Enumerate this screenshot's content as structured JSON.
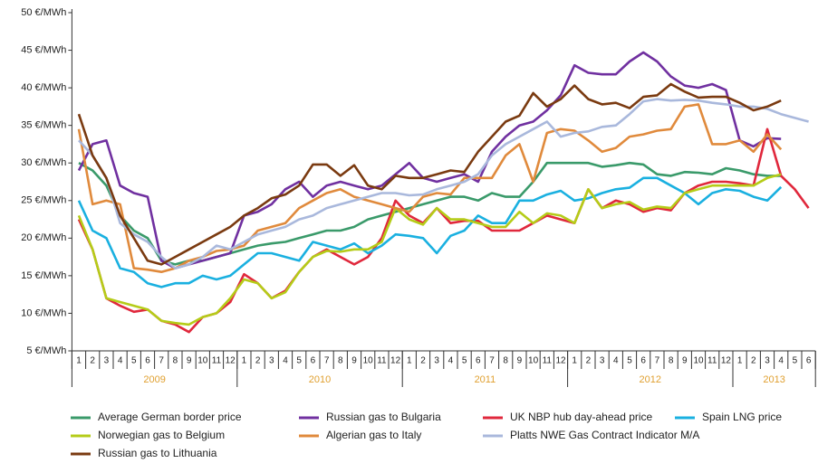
{
  "chart_data": {
    "type": "line",
    "categories": [
      "1",
      "2",
      "3",
      "4",
      "5",
      "6",
      "7",
      "8",
      "9",
      "10",
      "11",
      "12",
      "1",
      "2",
      "3",
      "4",
      "5",
      "6",
      "7",
      "8",
      "9",
      "10",
      "11",
      "12",
      "1",
      "2",
      "3",
      "4",
      "5",
      "6",
      "7",
      "8",
      "9",
      "10",
      "11",
      "12",
      "1",
      "2",
      "3",
      "4",
      "5",
      "6",
      "7",
      "8",
      "9",
      "10",
      "11",
      "12",
      "1",
      "2",
      "3",
      "4",
      "5",
      "6"
    ],
    "years": [
      "2009",
      "2010",
      "2011",
      "2012",
      "2013"
    ],
    "ylim": [
      5,
      50
    ],
    "yticks": [
      {
        "value": 5,
        "label": "5 €/MWh"
      },
      {
        "value": 10,
        "label": "10 €/MWh"
      },
      {
        "value": 15,
        "label": "15 €/MWh"
      },
      {
        "value": 20,
        "label": "20 €/MWh"
      },
      {
        "value": 25,
        "label": "25 €/MWh"
      },
      {
        "value": 30,
        "label": "30 €/MWh"
      },
      {
        "value": 35,
        "label": "35 €/MWh"
      },
      {
        "value": 40,
        "label": "40 €/MWh"
      },
      {
        "value": 45,
        "label": "45 €/MWh"
      },
      {
        "value": 50,
        "label": "50 €/MWh"
      }
    ],
    "grid": false,
    "legend": "bottom",
    "series": [
      {
        "name": "Average German border price",
        "color": "#3a9a6a",
        "values": [
          30,
          29,
          27,
          23,
          21,
          20,
          17,
          16.5,
          17,
          17,
          17.5,
          18,
          18.5,
          19,
          19.3,
          19.5,
          20,
          20.5,
          21,
          21,
          21.5,
          22.5,
          23,
          23.5,
          24,
          24.5,
          25,
          25.5,
          25.5,
          25,
          26,
          25.5,
          25.5,
          27.5,
          30,
          30,
          30,
          30,
          29.5,
          29.7,
          30,
          29.8,
          28.5,
          28.3,
          28.8,
          28.7,
          28.5,
          29.3,
          29,
          28.5,
          28.3,
          28.3,
          null,
          null
        ]
      },
      {
        "name": "Russian gas to Bulgaria",
        "color": "#7030a0",
        "values": [
          29,
          32.5,
          33,
          27,
          26,
          25.5,
          17,
          16,
          16.5,
          17,
          17.5,
          18,
          23,
          23.5,
          24.5,
          26.5,
          27.5,
          25.5,
          27,
          27.5,
          27,
          26.5,
          27,
          28.5,
          30,
          28,
          27.5,
          28,
          28.5,
          27.5,
          31.5,
          33.5,
          35,
          35.5,
          37,
          39,
          43,
          42,
          41.8,
          41.8,
          43.5,
          44.7,
          43.5,
          41.5,
          40.3,
          40,
          40.5,
          39.7,
          33,
          32.2,
          33.3,
          33.2,
          null,
          null
        ]
      },
      {
        "name": "UK NBP hub day-ahead price",
        "color": "#e0283c",
        "values": [
          22.5,
          18.5,
          12,
          11,
          10.2,
          10.5,
          9,
          8.5,
          7.5,
          9.5,
          10,
          11.5,
          15.2,
          14,
          12,
          13,
          15.5,
          17.5,
          18.5,
          17.5,
          16.5,
          17.5,
          20,
          25,
          23,
          22,
          24,
          22,
          22.3,
          22.3,
          21,
          21,
          21,
          22,
          23,
          22.5,
          22,
          26.5,
          24,
          25,
          24.5,
          23.5,
          24,
          23.7,
          26,
          27,
          27.5,
          27.5,
          27.3,
          27,
          34.5,
          28.3,
          26.5,
          24
        ]
      },
      {
        "name": "Spain LNG price",
        "color": "#1ab0e0",
        "values": [
          25,
          21,
          20,
          16,
          15.5,
          14,
          13.5,
          14,
          14,
          15,
          14.5,
          15,
          16.5,
          18,
          18,
          17.5,
          17,
          19.5,
          19,
          18.5,
          19.3,
          18,
          19,
          20.5,
          20.3,
          20,
          18,
          20.3,
          21,
          23,
          22,
          22,
          25,
          25,
          25.8,
          26.3,
          25,
          25.3,
          26,
          26.5,
          26.7,
          28,
          28,
          27,
          26,
          24.5,
          26,
          26.5,
          26.3,
          25.5,
          25,
          26.8,
          null,
          null
        ]
      },
      {
        "name": "Norwegian gas to Belgium",
        "color": "#b5cc18",
        "values": [
          23,
          18.5,
          12,
          11.5,
          11,
          10.5,
          9,
          8.7,
          8.5,
          9.5,
          10,
          12,
          14.5,
          14,
          12,
          12.8,
          15.5,
          17.5,
          18.3,
          18.2,
          18.5,
          18.5,
          19.5,
          24,
          22.5,
          21.8,
          24,
          22.5,
          22.5,
          22,
          21.5,
          21.5,
          23.5,
          22,
          23.3,
          23,
          22,
          26.5,
          24,
          24.5,
          24.8,
          23.8,
          24.2,
          24,
          26,
          26.5,
          27,
          27,
          27,
          27,
          28,
          28.5,
          null,
          null
        ]
      },
      {
        "name": "Algerian gas to Italy",
        "color": "#e08a3c",
        "values": [
          34.5,
          24.5,
          25,
          24.5,
          16,
          15.8,
          15.5,
          16,
          17,
          17.5,
          18.3,
          18.5,
          19,
          21,
          21.5,
          22,
          24,
          25,
          26,
          26.5,
          25.5,
          25,
          24.5,
          24,
          23.5,
          25.5,
          26,
          25.8,
          28,
          28,
          28,
          31,
          32.5,
          27.5,
          34,
          34.5,
          34.3,
          33,
          31.5,
          32,
          33.5,
          33.8,
          34.3,
          34.5,
          37.5,
          37.8,
          32.5,
          32.5,
          33,
          31.5,
          33.8,
          31.8,
          null,
          null
        ]
      },
      {
        "name": "Platts NWE Gas Contract Indicator M/A",
        "color": "#a9b8dc",
        "values": [
          33,
          31,
          28,
          22,
          20.5,
          19.5,
          17.5,
          16,
          16.5,
          17.5,
          19,
          18.5,
          19.5,
          20.5,
          21,
          21.5,
          22.5,
          23,
          24,
          24.5,
          25,
          25.5,
          26,
          26,
          25.7,
          25.8,
          26.5,
          27,
          27.5,
          28.5,
          31,
          32.5,
          33.5,
          34.5,
          35.5,
          33.5,
          34,
          34.2,
          34.8,
          35,
          36.5,
          38.2,
          38.5,
          38.3,
          38.4,
          38.3,
          38,
          37.8,
          37.5,
          37.5,
          37.2,
          36.5,
          36,
          35.5
        ]
      },
      {
        "name": "Russian gas to Lithuania",
        "color": "#7a3a10",
        "values": [
          36.5,
          31,
          28,
          23,
          20,
          17,
          16.5,
          17.5,
          18.5,
          19.5,
          20.5,
          21.5,
          23,
          24,
          25.3,
          25.8,
          27,
          29.8,
          29.8,
          28.3,
          29.7,
          27,
          26.5,
          28.3,
          28,
          28,
          28.5,
          29,
          28.8,
          31.5,
          33.5,
          35.5,
          36.3,
          39.3,
          37.5,
          38.5,
          40.3,
          38.5,
          37.8,
          38,
          37.3,
          38.8,
          39,
          40.5,
          39.5,
          38.7,
          38.8,
          38.8,
          38,
          37,
          37.5,
          38.3,
          null,
          null
        ]
      }
    ]
  }
}
